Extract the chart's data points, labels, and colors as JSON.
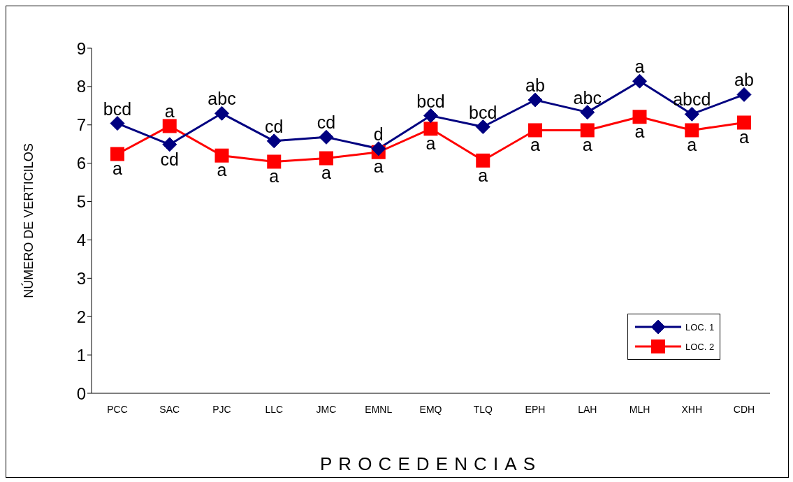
{
  "chart_data": {
    "type": "line",
    "xlabel": "PROCEDENCIAS",
    "ylabel": "NÚMERO DE VERTICILOS",
    "categories": [
      "PCC",
      "SAC",
      "PJC",
      "LLC",
      "JMC",
      "EMNL",
      "EMQ",
      "TLQ",
      "EPH",
      "LAH",
      "MLH",
      "XHH",
      "CDH"
    ],
    "series": [
      {
        "name": "LOC. 1",
        "color": "#000080",
        "marker": "diamond",
        "values": [
          7.04,
          6.49,
          7.3,
          6.58,
          6.68,
          6.38,
          7.24,
          6.95,
          7.65,
          7.33,
          8.14,
          7.28,
          7.79
        ]
      },
      {
        "name": "LOC. 2",
        "color": "#ff0000",
        "marker": "square",
        "values": [
          6.24,
          6.97,
          6.2,
          6.04,
          6.13,
          6.29,
          6.9,
          6.07,
          6.86,
          6.86,
          7.21,
          6.86,
          7.06
        ]
      }
    ],
    "ylim": [
      0,
      9
    ],
    "yticks": [
      0,
      1,
      2,
      3,
      4,
      5,
      6,
      7,
      8,
      9
    ],
    "grid": false,
    "legend": "bottom right",
    "line_style": "solid",
    "annotations": [
      {
        "text": "bcd",
        "x": "PCC",
        "y": 7.04
      },
      {
        "text": "cd",
        "x": "SAC",
        "y": 6.49
      },
      {
        "text": "abc",
        "x": "PJC",
        "y": 7.3
      },
      {
        "text": "cd",
        "x": "LLC",
        "y": 6.58
      },
      {
        "text": "cd",
        "x": "JMC",
        "y": 6.68
      },
      {
        "text": "d",
        "x": "EMNL",
        "y": 6.38
      },
      {
        "text": "bcd",
        "x": "EMQ",
        "y": 7.24
      },
      {
        "text": "bcd",
        "x": "TLQ",
        "y": 6.95
      },
      {
        "text": "ab",
        "x": "EPH",
        "y": 7.65
      },
      {
        "text": "abc",
        "x": "LAH",
        "y": 7.33
      },
      {
        "text": "a",
        "x": "MLH",
        "y": 8.14
      },
      {
        "text": "abcd",
        "x": "XHH",
        "y": 7.28
      },
      {
        "text": "ab",
        "x": "CDH",
        "y": 7.79
      },
      {
        "text": "a",
        "x": "PCC",
        "y": 6.24
      },
      {
        "text": "a",
        "x": "SAC",
        "y": 6.97
      },
      {
        "text": "a",
        "x": "PJC",
        "y": 6.2
      },
      {
        "text": "a",
        "x": "LLC",
        "y": 6.04
      },
      {
        "text": "a",
        "x": "JMC",
        "y": 6.13
      },
      {
        "text": "a",
        "x": "EMNL",
        "y": 6.29
      },
      {
        "text": "a",
        "x": "EMQ",
        "y": 6.9
      },
      {
        "text": "a",
        "x": "TLQ",
        "y": 6.07
      },
      {
        "text": "a",
        "x": "EPH",
        "y": 6.86
      },
      {
        "text": "a",
        "x": "LAH",
        "y": 6.86
      },
      {
        "text": "a",
        "x": "MLH",
        "y": 7.21
      },
      {
        "text": "a",
        "x": "XHH",
        "y": 6.86
      },
      {
        "text": "a",
        "x": "CDH",
        "y": 7.06
      }
    ]
  }
}
